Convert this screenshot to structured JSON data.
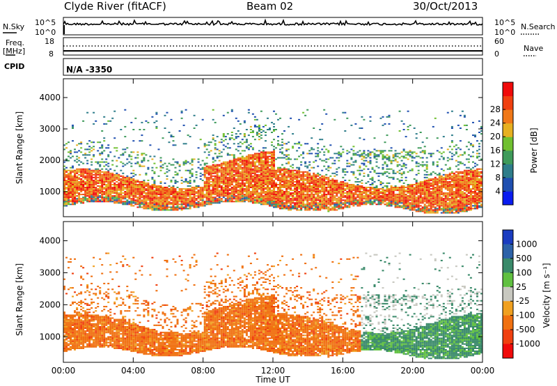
{
  "header": {
    "station": "Clyde River (fitACF)",
    "beam": "Beam 02",
    "date": "30/Oct/2013"
  },
  "top_panels": {
    "nsky_label": "N.Sky",
    "nsearch_label": "N.Search",
    "count_axis_top": "10^5",
    "count_axis_bottom": "10^0",
    "freq_label_1": "Freq.",
    "freq_label_2": "[MHz]",
    "freq_top": "18",
    "freq_bottom": "8",
    "nave_label": "Nave",
    "nave_top": "60",
    "nave_bottom": "0",
    "cpid_label": "CPID",
    "cpid_value": "N/A  -3350"
  },
  "chart_data": [
    {
      "type": "heatmap",
      "name": "power",
      "ylabel": "Slant Range [km]",
      "ylim": [
        200,
        4600
      ],
      "yticks": [
        1000,
        2000,
        3000,
        4000
      ],
      "xlim": [
        0,
        24
      ],
      "xticks": [
        "00:00",
        "04:00",
        "08:00",
        "12:00",
        "16:00",
        "20:00",
        "00:00"
      ],
      "colorbar": {
        "label": "Power [dB]",
        "range": [
          0,
          32
        ],
        "ticks": [
          "4",
          "8",
          "12",
          "16",
          "20",
          "24",
          "28"
        ],
        "colors": [
          "#0a1cf0",
          "#1f4fb0",
          "#2e7d8a",
          "#3e9a5a",
          "#70c030",
          "#e6b020",
          "#f07818",
          "#f04010",
          "#f00a0a"
        ]
      }
    },
    {
      "type": "heatmap",
      "name": "velocity",
      "ylabel": "Slant Range [km]",
      "ylim": [
        200,
        4600
      ],
      "yticks": [
        1000,
        2000,
        3000,
        4000
      ],
      "xlim": [
        0,
        24
      ],
      "xticks": [
        "00:00",
        "04:00",
        "08:00",
        "12:00",
        "16:00",
        "20:00",
        "00:00"
      ],
      "xlabel": "Time UT",
      "colorbar": {
        "label": "Velocity [m s⁻¹]",
        "ticks": [
          "1000",
          "500",
          "100",
          "25",
          "-25",
          "-100",
          "-500",
          "-1000"
        ],
        "colors": [
          "#1a3cc0",
          "#2d62a8",
          "#3a8a6a",
          "#60c040",
          "#c8c8c0",
          "#f0a020",
          "#f07010",
          "#f04010",
          "#f00a0a"
        ]
      }
    }
  ]
}
